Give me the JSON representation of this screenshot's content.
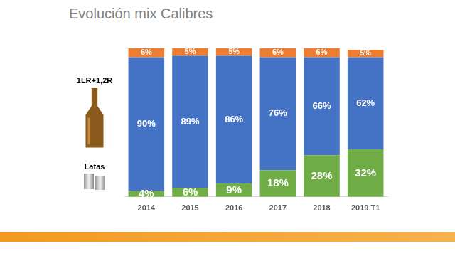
{
  "chart_data": {
    "type": "bar",
    "title": "Evolución mix Calibres",
    "categories": [
      "2014",
      "2015",
      "2016",
      "2017",
      "2018",
      "2019 T1"
    ],
    "series": [
      {
        "name": "Latas",
        "color": "#70ad47",
        "values": [
          4,
          6,
          9,
          18,
          28,
          32
        ],
        "value_labels": [
          "4%",
          "6%",
          "9%",
          "18%",
          "28%",
          "32%"
        ]
      },
      {
        "name": "1LR+1,2R",
        "color": "#4472c4",
        "values": [
          90,
          89,
          86,
          76,
          66,
          62
        ],
        "value_labels": [
          "90%",
          "89%",
          "86%",
          "76%",
          "66%",
          "62%"
        ]
      },
      {
        "color": "#ed7d31",
        "values": [
          6,
          5,
          5,
          6,
          6,
          5
        ],
        "value_labels": [
          "6%",
          "5%",
          "5%",
          "6%",
          "6%",
          "5%"
        ]
      }
    ],
    "ylim": [
      0,
      100
    ],
    "stacked": true,
    "data_labels": true,
    "grid": false,
    "tick_labels": "x"
  }
}
